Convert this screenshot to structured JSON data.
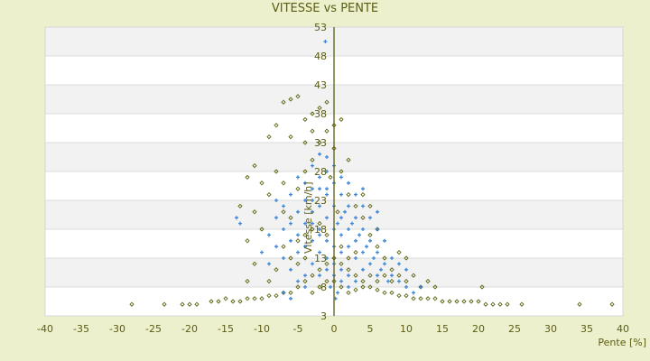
{
  "chart_data": {
    "type": "scatter",
    "title": "VITESSE vs PENTE",
    "xlabel": "Pente [%]",
    "ylabel": "Vitesse [km/h]",
    "xlim": [
      -40,
      40
    ],
    "ylim": [
      3,
      53
    ],
    "xticks": [
      -40,
      -35,
      -30,
      -25,
      -20,
      -15,
      -10,
      -5,
      0,
      5,
      10,
      15,
      20,
      25,
      30,
      35,
      40
    ],
    "yticks": [
      3,
      8,
      13,
      18,
      23,
      28,
      33,
      38,
      43,
      48,
      53
    ],
    "grid": true,
    "legend": "none",
    "colors": {
      "series_blue": "#3a86d8",
      "series_olive": "#5c6410",
      "axis": "#5c5c14",
      "band": "#f2f2f2",
      "background": "#ecf0cc"
    },
    "series": [
      {
        "marker": "plus",
        "color": "#3a86d8",
        "points": [
          [
            -1.2,
            50.5
          ],
          [
            -13.5,
            20
          ],
          [
            -13,
            19
          ],
          [
            -2,
            31
          ],
          [
            -1,
            30.5
          ],
          [
            -3,
            29
          ],
          [
            -5,
            27
          ],
          [
            -4,
            26
          ],
          [
            -6,
            24
          ],
          [
            -7,
            22
          ],
          [
            -8,
            20
          ],
          [
            -6,
            19
          ],
          [
            -5,
            21
          ],
          [
            -4,
            23
          ],
          [
            -3,
            25
          ],
          [
            -2,
            27
          ],
          [
            -1,
            28
          ],
          [
            0,
            26
          ],
          [
            1,
            24
          ],
          [
            2,
            22
          ],
          [
            3,
            20
          ],
          [
            4,
            18
          ],
          [
            5,
            16
          ],
          [
            6,
            14
          ],
          [
            7,
            12
          ],
          [
            8,
            10
          ],
          [
            9,
            9
          ],
          [
            10,
            8
          ],
          [
            -9,
            17
          ],
          [
            -8,
            15
          ],
          [
            -7,
            13
          ],
          [
            -6,
            11
          ],
          [
            -5,
            9
          ],
          [
            -4,
            8
          ],
          [
            -3,
            16
          ],
          [
            -2,
            18
          ],
          [
            -1,
            20
          ],
          [
            0,
            22
          ],
          [
            1,
            20
          ],
          [
            2,
            18
          ],
          [
            3,
            16
          ],
          [
            4,
            14
          ],
          [
            5,
            12
          ],
          [
            6,
            10
          ],
          [
            -2,
            14
          ],
          [
            -1,
            13
          ],
          [
            0,
            12
          ],
          [
            1,
            11
          ],
          [
            2,
            10
          ],
          [
            3,
            9
          ],
          [
            -3,
            12
          ],
          [
            -4,
            10
          ],
          [
            -1,
            16
          ],
          [
            0,
            18
          ],
          [
            1,
            17
          ],
          [
            2,
            15
          ],
          [
            3,
            13
          ],
          [
            4,
            11
          ],
          [
            0,
            15
          ],
          [
            1,
            14
          ],
          [
            -1,
            24
          ],
          [
            -2,
            22
          ],
          [
            -3,
            21
          ],
          [
            -4,
            19
          ],
          [
            -5,
            17
          ],
          [
            0.5,
            19
          ],
          [
            1.5,
            21
          ],
          [
            2.5,
            19
          ],
          [
            3.5,
            17
          ],
          [
            4.5,
            15
          ],
          [
            5.5,
            13
          ],
          [
            6.5,
            11
          ],
          [
            7.5,
            9
          ],
          [
            8,
            13
          ],
          [
            9,
            12
          ],
          [
            10,
            11
          ],
          [
            -10,
            14
          ],
          [
            -9,
            12
          ],
          [
            -7,
            7
          ],
          [
            -6,
            6
          ],
          [
            12,
            8
          ],
          [
            11,
            7
          ],
          [
            -0.5,
            8
          ],
          [
            0.5,
            7
          ],
          [
            1,
            9
          ],
          [
            2,
            8
          ],
          [
            -2,
            10
          ],
          [
            -1,
            11
          ],
          [
            0,
            10
          ],
          [
            3,
            24
          ],
          [
            4,
            22
          ],
          [
            5,
            20
          ],
          [
            6,
            18
          ],
          [
            7,
            16
          ],
          [
            -2,
            17
          ],
          [
            -3,
            19
          ],
          [
            -5,
            14
          ],
          [
            -6,
            16
          ],
          [
            2,
            26
          ],
          [
            1,
            27
          ],
          [
            -1,
            25
          ],
          [
            0,
            29
          ],
          [
            -2,
            25
          ],
          [
            -3,
            23
          ],
          [
            -4,
            15
          ],
          [
            0.2,
            6
          ],
          [
            -7,
            18
          ],
          [
            -8,
            23
          ],
          [
            6,
            21
          ],
          [
            4,
            25
          ]
        ]
      },
      {
        "marker": "diamond",
        "color": "#5c6410",
        "points": [
          [
            -28,
            5
          ],
          [
            -23.5,
            5
          ],
          [
            -21,
            5
          ],
          [
            -20,
            5
          ],
          [
            -19,
            5
          ],
          [
            -17,
            5.5
          ],
          [
            -16,
            5.5
          ],
          [
            -15,
            6
          ],
          [
            -14,
            5.5
          ],
          [
            -13,
            5.5
          ],
          [
            -12,
            6
          ],
          [
            -11,
            6
          ],
          [
            -10,
            6
          ],
          [
            -9,
            6.5
          ],
          [
            -8,
            6.5
          ],
          [
            -7,
            7
          ],
          [
            -6,
            7
          ],
          [
            -5,
            8
          ],
          [
            -4,
            9
          ],
          [
            -3,
            10
          ],
          [
            -2,
            11
          ],
          [
            -1,
            12
          ],
          [
            0,
            13
          ],
          [
            1,
            12
          ],
          [
            2,
            11
          ],
          [
            3,
            10
          ],
          [
            4,
            9
          ],
          [
            5,
            8
          ],
          [
            6,
            7.5
          ],
          [
            7,
            7
          ],
          [
            8,
            7
          ],
          [
            9,
            6.5
          ],
          [
            10,
            6.5
          ],
          [
            11,
            6
          ],
          [
            12,
            6
          ],
          [
            13,
            6
          ],
          [
            14,
            6
          ],
          [
            15,
            5.5
          ],
          [
            16,
            5.5
          ],
          [
            17,
            5.5
          ],
          [
            18,
            5.5
          ],
          [
            19,
            5.5
          ],
          [
            20,
            5.5
          ],
          [
            20.5,
            8
          ],
          [
            21,
            5
          ],
          [
            22,
            5
          ],
          [
            23,
            5
          ],
          [
            24,
            5
          ],
          [
            26,
            5
          ],
          [
            34,
            5
          ],
          [
            38.5,
            5
          ],
          [
            -7,
            40
          ],
          [
            -6,
            40.5
          ],
          [
            -5,
            41
          ],
          [
            -4,
            37
          ],
          [
            -3,
            38
          ],
          [
            -2,
            39
          ],
          [
            -1,
            40
          ],
          [
            0,
            36
          ],
          [
            1,
            37
          ],
          [
            -3,
            35
          ],
          [
            -8,
            36
          ],
          [
            -9,
            34
          ],
          [
            -6,
            34
          ],
          [
            -4,
            33
          ],
          [
            -12,
            27
          ],
          [
            -11,
            29
          ],
          [
            -10,
            26
          ],
          [
            -9,
            24
          ],
          [
            -8,
            28
          ],
          [
            -7,
            26
          ],
          [
            -10,
            18
          ],
          [
            -11,
            12
          ],
          [
            -12,
            16
          ],
          [
            -11,
            21
          ],
          [
            -13,
            22
          ],
          [
            -12,
            9
          ],
          [
            -9,
            9
          ],
          [
            -8,
            11
          ],
          [
            -7,
            15
          ],
          [
            -6,
            13
          ],
          [
            -5,
            25
          ],
          [
            -4,
            28
          ],
          [
            -3,
            30
          ],
          [
            -2,
            33
          ],
          [
            -1,
            35
          ],
          [
            0,
            32
          ],
          [
            1,
            28
          ],
          [
            2,
            24
          ],
          [
            3,
            22
          ],
          [
            4,
            20
          ],
          [
            5,
            17
          ],
          [
            6,
            15
          ],
          [
            7,
            13
          ],
          [
            8,
            11
          ],
          [
            9,
            10
          ],
          [
            10,
            9
          ],
          [
            11,
            10
          ],
          [
            12,
            8
          ],
          [
            13,
            9
          ],
          [
            14,
            8
          ],
          [
            4,
            24
          ],
          [
            5,
            22
          ],
          [
            6,
            18
          ],
          [
            3,
            14
          ],
          [
            2,
            13
          ],
          [
            1,
            15
          ],
          [
            -1,
            17
          ],
          [
            -2,
            19
          ],
          [
            -3,
            18
          ],
          [
            -4,
            17
          ],
          [
            -5,
            16
          ],
          [
            -6,
            20
          ],
          [
            -7,
            21
          ],
          [
            -1,
            9
          ],
          [
            -2,
            8
          ],
          [
            -3,
            7
          ],
          [
            0,
            9
          ],
          [
            1,
            8
          ],
          [
            2,
            7
          ],
          [
            3,
            7.5
          ],
          [
            4,
            8
          ],
          [
            5,
            10
          ],
          [
            6,
            9
          ],
          [
            7,
            10
          ],
          [
            8,
            9
          ],
          [
            -5,
            12
          ],
          [
            -4,
            13
          ],
          [
            2,
            30
          ],
          [
            0.5,
            21
          ],
          [
            -0.5,
            27
          ],
          [
            9,
            14
          ],
          [
            10,
            13
          ]
        ]
      }
    ]
  }
}
